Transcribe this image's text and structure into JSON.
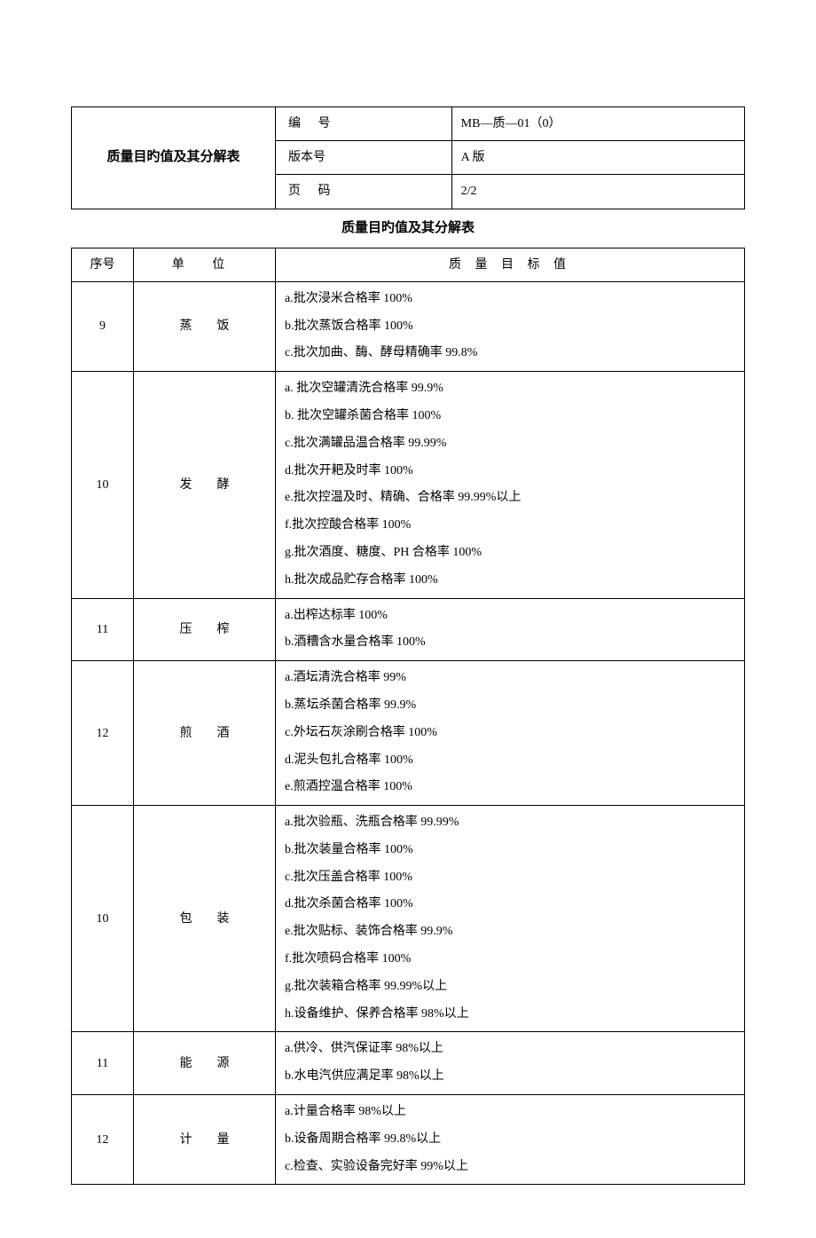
{
  "header": {
    "title": "质量目旳值及其分解表",
    "code_label": "编 号",
    "code_value": "MB—质—01（0）",
    "version_label": "版本号",
    "version_value": "A 版",
    "page_label": "页 码",
    "page_value": "2/2"
  },
  "caption": "质量目旳值及其分解表",
  "columns": {
    "seq": "序号",
    "unit": "单 位",
    "target": "质 量 目 标 值"
  },
  "rows": [
    {
      "seq": "9",
      "unit": "蒸饭",
      "targets": [
        "a.批次浸米合格率 100%",
        "b.批次蒸饭合格率 100%",
        "c.批次加曲、酶、酵母精确率 99.8%"
      ]
    },
    {
      "seq": "10",
      "unit": "发酵",
      "targets": [
        "a. 批次空罐清洗合格率 99.9%",
        "b. 批次空罐杀菌合格率 100%",
        "c.批次满罐品温合格率 99.99%",
        "d.批次开耙及时率 100%",
        "e.批次控温及时、精确、合格率 99.99%以上",
        "f.批次控酸合格率 100%",
        "g.批次酒度、糖度、PH 合格率 100%",
        "h.批次成品贮存合格率 100%"
      ]
    },
    {
      "seq": "11",
      "unit": "压榨",
      "targets": [
        "a.出榨达标率 100%",
        "b.酒糟含水量合格率 100%"
      ]
    },
    {
      "seq": "12",
      "unit": "煎酒",
      "targets": [
        "a.酒坛清洗合格率 99%",
        "b.蒸坛杀菌合格率 99.9%",
        "c.外坛石灰涂刷合格率 100%",
        "d.泥头包扎合格率 100%",
        "e.煎酒控温合格率 100%"
      ]
    },
    {
      "seq": "10",
      "unit": "包装",
      "targets": [
        "a.批次验瓶、洗瓶合格率 99.99%",
        "b.批次装量合格率 100%",
        "c.批次压盖合格率 100%",
        "d.批次杀菌合格率 100%",
        "e.批次贴标、装饰合格率 99.9%",
        "f.批次喷码合格率 100%",
        "g.批次装箱合格率 99.99%以上",
        "h.设备维护、保养合格率 98%以上"
      ]
    },
    {
      "seq": "11",
      "unit": "能源",
      "targets": [
        "a.供冷、供汽保证率 98%以上",
        "b.水电汽供应满足率 98%以上"
      ]
    },
    {
      "seq": "12",
      "unit": "计量",
      "targets": [
        "a.计量合格率 98%以上",
        "b.设备周期合格率 99.8%以上",
        "c.检查、实验设备完好率 99%以上"
      ]
    }
  ]
}
